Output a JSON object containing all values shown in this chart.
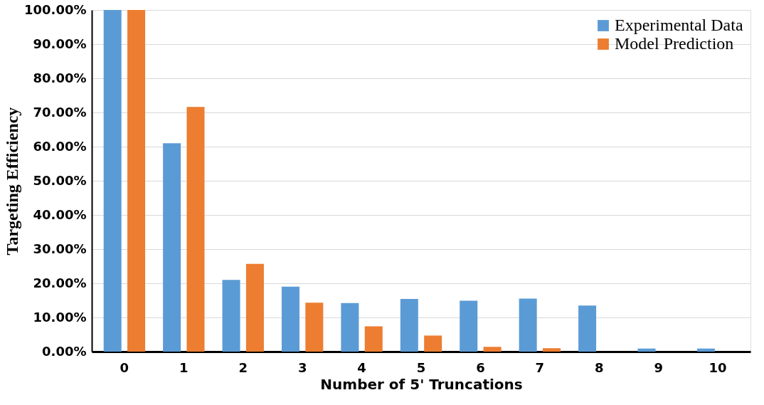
{
  "chart_data": {
    "type": "bar",
    "xlabel": "Number of 5' Truncations",
    "ylabel": "Targeting Efficiency",
    "categories": [
      "0",
      "1",
      "2",
      "3",
      "4",
      "5",
      "6",
      "7",
      "8",
      "9",
      "10"
    ],
    "series": [
      {
        "name": "Experimental Data",
        "color": "#5b9bd5",
        "values": [
          100,
          61.0,
          21.0,
          19.0,
          14.2,
          15.4,
          14.9,
          15.5,
          13.5,
          0.9,
          0.9
        ]
      },
      {
        "name": "Model Prediction",
        "color": "#ed7d31",
        "values": [
          100,
          71.6,
          25.7,
          14.3,
          7.4,
          4.7,
          1.4,
          1.0,
          null,
          null,
          null
        ]
      }
    ],
    "ylim": [
      0,
      100
    ],
    "yticks": [
      {
        "value": 0,
        "label": "0.00%"
      },
      {
        "value": 10,
        "label": "10.00%"
      },
      {
        "value": 20,
        "label": "20.00%"
      },
      {
        "value": 30,
        "label": "30.00%"
      },
      {
        "value": 40,
        "label": "40.00%"
      },
      {
        "value": 50,
        "label": "50.00%"
      },
      {
        "value": 60,
        "label": "60.00%"
      },
      {
        "value": 70,
        "label": "70.00%"
      },
      {
        "value": 80,
        "label": "80.00%"
      },
      {
        "value": 90,
        "label": "90.00%"
      },
      {
        "value": 100,
        "label": "100.00%"
      }
    ],
    "grid": "y",
    "legend": "top right"
  }
}
